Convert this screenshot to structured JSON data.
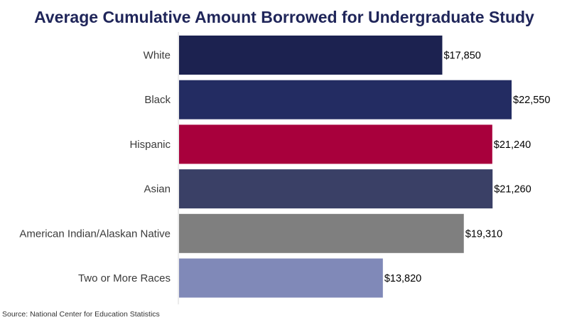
{
  "chart_data": {
    "type": "bar",
    "orientation": "horizontal",
    "title": "Average Cumulative Amount Borrowed for Undergraduate Study",
    "categories": [
      "White",
      "Black",
      "Hispanic",
      "Asian",
      "American Indian/Alaskan Native",
      "Two or More Races"
    ],
    "values": [
      17850,
      22550,
      21240,
      21260,
      19310,
      13820
    ],
    "value_labels": [
      "$17,850",
      "$22,550",
      "$21,240",
      "$21,260",
      "$19,310",
      "$13,820"
    ],
    "colors": [
      "#1c2250",
      "#232c62",
      "#a8003c",
      "#3a4066",
      "#7f7f7f",
      "#8089b8"
    ],
    "xlim": [
      0,
      22550
    ],
    "grid": false,
    "legend": "none"
  },
  "source": "Source: National Center for Education Statistics"
}
